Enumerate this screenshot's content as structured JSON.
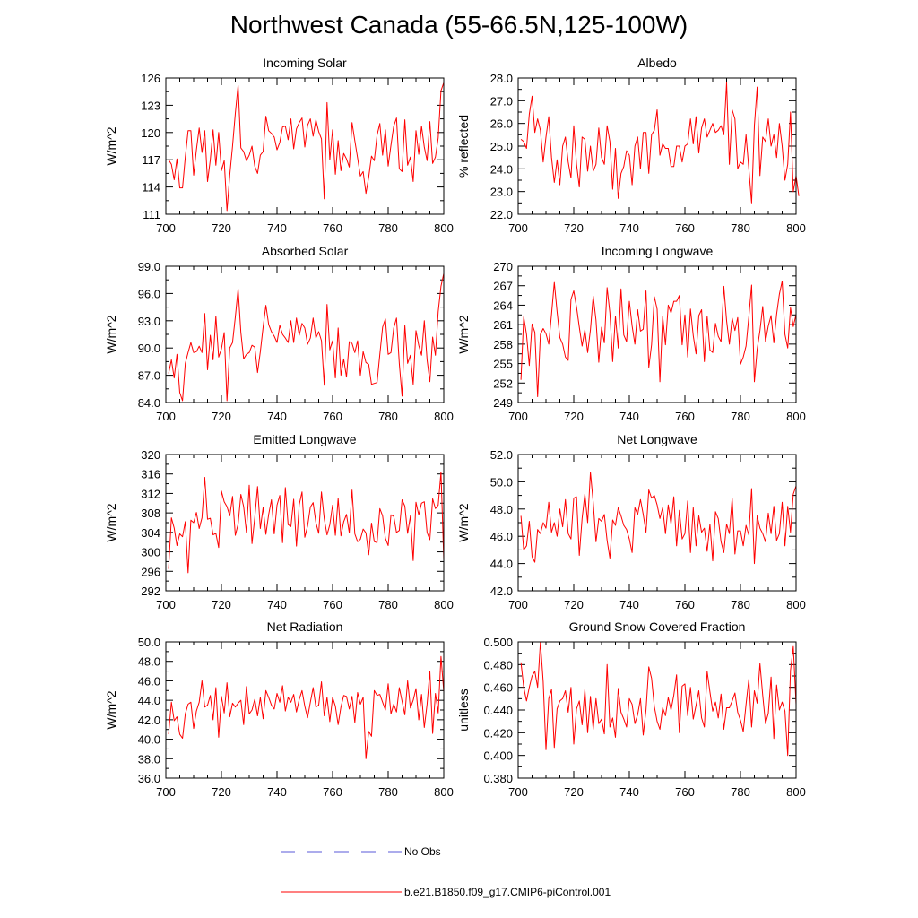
{
  "title": "Northwest Canada (55-66.5N,125-100W)",
  "colors": {
    "series": "#ff0000",
    "obs": "#5a5ad8",
    "axis": "#000000"
  },
  "legend": {
    "obs_label": "No Obs",
    "model_label": "b.e21.B1850.f09_g17.CMIP6-piControl.001"
  },
  "chart_data": [
    {
      "type": "line",
      "title": "Incoming Solar",
      "ylabel": "W/m^2",
      "xlim": [
        700,
        800
      ],
      "ylim": [
        111,
        126
      ],
      "xticks": [
        "700",
        "720",
        "740",
        "760",
        "780",
        "800"
      ],
      "yticks": [
        "111",
        "114",
        "117",
        "120",
        "123",
        "126"
      ],
      "series": [
        {
          "name": "b.e21.B1850.f09_g17.CMIP6-piControl.001",
          "x_start": 701,
          "values": [
            117.0,
            116.5,
            114.8,
            117.1,
            113.9,
            113.9,
            117.3,
            120.2,
            120.2,
            115.3,
            118.1,
            120.5,
            117.8,
            120.2,
            114.6,
            117.0,
            120.3,
            116.4,
            120.0,
            115.8,
            116.9,
            111.4,
            115.3,
            118.5,
            122.1,
            125.2,
            118.3,
            117.9,
            116.9,
            117.5,
            118.5,
            116.3,
            115.5,
            117.5,
            117.9,
            121.8,
            120.2,
            119.9,
            119.5,
            118.1,
            118.9,
            120.6,
            120.7,
            119.2,
            121.5,
            118.2,
            120.4,
            121.1,
            121.6,
            118.4,
            120.8,
            121.5,
            119.6,
            121.4,
            120.1,
            119.3,
            112.7,
            123.3,
            117.0,
            120.3,
            115.4,
            119.1,
            115.8,
            117.7,
            117.1,
            116.2,
            121.1,
            119.1,
            117.2,
            115.2,
            115.7,
            113.3,
            115.1,
            117.4,
            116.9,
            119.7,
            121.0,
            117.5,
            120.3,
            116.3,
            118.6,
            120.7,
            121.6,
            116.0,
            115.7,
            121.4,
            116.4,
            117.3,
            114.6,
            120.2,
            117.6,
            120.7,
            118.4,
            116.9,
            121.2,
            116.6,
            117.3,
            119.4,
            124.6,
            125.5
          ]
        }
      ]
    },
    {
      "type": "line",
      "title": "Albedo",
      "ylabel": "% reflected",
      "xlim": [
        700,
        800
      ],
      "ylim": [
        22.0,
        28.0
      ],
      "xticks": [
        "700",
        "720",
        "740",
        "760",
        "780",
        "800"
      ],
      "yticks": [
        "22.0",
        "23.0",
        "24.0",
        "25.0",
        "26.0",
        "27.0",
        "28.0"
      ],
      "series": [
        {
          "name": "b.e21.B1850.f09_g17.CMIP6-piControl.001",
          "x_start": 701,
          "values": [
            25.3,
            25.2,
            24.9,
            26.4,
            27.2,
            25.6,
            26.2,
            25.7,
            24.3,
            25.4,
            26.3,
            24.5,
            23.4,
            24.4,
            23.3,
            25.0,
            25.4,
            24.3,
            23.6,
            25.9,
            24.2,
            23.2,
            25.4,
            25.3,
            23.9,
            25.0,
            23.9,
            24.2,
            25.8,
            24.5,
            24.2,
            25.9,
            25.2,
            23.1,
            24.9,
            22.7,
            23.8,
            24.1,
            24.8,
            24.6,
            23.3,
            25.0,
            25.4,
            24.0,
            25.6,
            25.6,
            23.8,
            25.5,
            25.7,
            26.6,
            24.6,
            25.1,
            24.9,
            24.9,
            24.1,
            24.1,
            25.0,
            25.0,
            24.3,
            25.0,
            25.1,
            26.2,
            25.1,
            26.3,
            24.7,
            25.8,
            26.2,
            25.4,
            25.7,
            26.0,
            25.6,
            25.7,
            25.9,
            25.5,
            27.8,
            24.2,
            26.6,
            26.2,
            24.0,
            24.3,
            24.2,
            25.5,
            24.0,
            22.5,
            25.9,
            27.6,
            23.7,
            25.4,
            25.2,
            26.2,
            25.0,
            25.5,
            24.5,
            26.0,
            25.0,
            23.5,
            24.2,
            26.5,
            23.0,
            23.7,
            22.8
          ]
        }
      ]
    },
    {
      "type": "line",
      "title": "Absorbed Solar",
      "ylabel": "W/m^2",
      "xlim": [
        700,
        800
      ],
      "ylim": [
        84.0,
        99.0
      ],
      "xticks": [
        "700",
        "720",
        "740",
        "760",
        "780",
        "800"
      ],
      "yticks": [
        "84.0",
        "87.0",
        "90.0",
        "93.0",
        "96.0",
        "99.0"
      ],
      "series": [
        {
          "name": "b.e21.B1850.f09_g17.CMIP6-piControl.001",
          "x_start": 701,
          "values": [
            87.2,
            88.7,
            86.7,
            89.3,
            85.1,
            84.2,
            88.3,
            89.5,
            90.6,
            89.5,
            89.6,
            90.2,
            89.5,
            93.8,
            87.6,
            91.4,
            88.7,
            93.5,
            89.0,
            89.9,
            91.7,
            84.2,
            90.0,
            90.6,
            93.4,
            96.5,
            91.7,
            88.8,
            89.3,
            89.5,
            90.3,
            90.1,
            87.3,
            89.6,
            92.3,
            94.7,
            92.6,
            91.8,
            91.3,
            90.6,
            92.5,
            91.5,
            91.1,
            90.6,
            93.0,
            90.6,
            93.3,
            91.4,
            92.7,
            92.2,
            90.4,
            91.1,
            93.3,
            91.1,
            91.8,
            90.8,
            85.9,
            94.8,
            89.8,
            90.8,
            86.7,
            92.2,
            87.0,
            88.8,
            86.8,
            90.7,
            90.5,
            89.5,
            90.8,
            87.0,
            89.6,
            88.4,
            88.2,
            86.0,
            86.1,
            86.2,
            89.3,
            92.3,
            93.2,
            89.3,
            89.5,
            92.2,
            93.3,
            88.3,
            84.7,
            92.5,
            88.3,
            89.2,
            86.0,
            91.9,
            90.3,
            89.2,
            93.0,
            88.7,
            86.3,
            91.2,
            89.2,
            94.0,
            96.8,
            98.2
          ]
        }
      ]
    },
    {
      "type": "line",
      "title": "Incoming Longwave",
      "ylabel": "W/m^2",
      "xlim": [
        700,
        800
      ],
      "ylim": [
        249,
        270
      ],
      "xticks": [
        "700",
        "720",
        "740",
        "760",
        "780",
        "800"
      ],
      "yticks": [
        "249",
        "252",
        "255",
        "258",
        "261",
        "264",
        "267",
        "270"
      ],
      "series": [
        {
          "name": "b.e21.B1850.f09_g17.CMIP6-piControl.001",
          "x_start": 701,
          "values": [
            252.5,
            262.2,
            259.5,
            254.7,
            261.1,
            259.8,
            249.9,
            259.5,
            260.4,
            259.6,
            258.0,
            262.6,
            267.5,
            263.0,
            259.0,
            258.0,
            256.0,
            255.5,
            264.9,
            266.2,
            263.7,
            260.6,
            257.7,
            260.2,
            256.7,
            260.2,
            265.4,
            261.7,
            255.2,
            260.6,
            258.2,
            266.7,
            262.8,
            255.3,
            262.3,
            257.4,
            266.5,
            259.4,
            258.4,
            264.6,
            260.8,
            258.0,
            263.3,
            260.0,
            260.3,
            266.2,
            254.4,
            257.9,
            265.3,
            263.4,
            252.2,
            262.3,
            257.9,
            264.0,
            262.8,
            264.6,
            264.6,
            265.5,
            257.9,
            262.5,
            256.0,
            263.4,
            259.3,
            256.5,
            262.4,
            263.3,
            255.3,
            262.3,
            257.1,
            256.7,
            261.2,
            259.2,
            258.4,
            266.9,
            261.6,
            258.0,
            262.0,
            260.1,
            262.1,
            254.9,
            256.0,
            257.7,
            262.2,
            267.1,
            252.2,
            257.2,
            260.1,
            263.8,
            258.4,
            260.8,
            262.4,
            258.2,
            262.6,
            265.7,
            267.7,
            259.5,
            257.4,
            263.6,
            260.7,
            262.6
          ]
        }
      ]
    },
    {
      "type": "line",
      "title": "Emitted Longwave",
      "ylabel": "W/m^2",
      "xlim": [
        700,
        800
      ],
      "ylim": [
        292,
        320
      ],
      "xticks": [
        "700",
        "720",
        "740",
        "760",
        "780",
        "800"
      ],
      "yticks": [
        "292",
        "296",
        "300",
        "304",
        "308",
        "312",
        "316",
        "320"
      ],
      "series": [
        {
          "name": "b.e21.B1850.f09_g17.CMIP6-piControl.001",
          "x_start": 701,
          "values": [
            296.5,
            307.0,
            304.9,
            301.3,
            303.7,
            303.1,
            306.2,
            295.7,
            306.5,
            306.0,
            308.1,
            304.8,
            307.0,
            315.3,
            306.7,
            306.9,
            303.5,
            303.8,
            300.9,
            312.5,
            310.3,
            309.3,
            307.4,
            311.4,
            303.4,
            305.7,
            311.8,
            309.3,
            304.0,
            313.7,
            301.7,
            307.0,
            313.4,
            304.8,
            309.1,
            303.6,
            307.7,
            310.7,
            303.7,
            309.6,
            311.6,
            301.9,
            313.2,
            305.6,
            305.2,
            310.8,
            301.2,
            309.7,
            312.3,
            303.0,
            305.3,
            309.2,
            310.1,
            306.0,
            303.8,
            312.3,
            306.8,
            303.5,
            305.6,
            309.6,
            303.4,
            311.0,
            303.3,
            306.2,
            307.7,
            303.9,
            312.7,
            303.7,
            302.1,
            302.6,
            304.7,
            303.9,
            299.4,
            305.9,
            302.1,
            301.9,
            308.9,
            307.4,
            302.8,
            301.3,
            307.6,
            307.3,
            304.0,
            304.4,
            310.7,
            309.4,
            303.8,
            307.4,
            298.2,
            310.2,
            307.6,
            310.0,
            310.3,
            304.0,
            302.5,
            310.9,
            308.9,
            309.6,
            316.4,
            298.4
          ]
        }
      ]
    },
    {
      "type": "line",
      "title": "Net Longwave",
      "ylabel": "W/m^2",
      "xlim": [
        700,
        800
      ],
      "ylim": [
        42.0,
        52.0
      ],
      "xticks": [
        "700",
        "720",
        "740",
        "760",
        "780",
        "800"
      ],
      "yticks": [
        "42.0",
        "44.0",
        "46.0",
        "48.0",
        "50.0",
        "52.0"
      ],
      "series": [
        {
          "name": "b.e21.B1850.f09_g17.CMIP6-piControl.001",
          "x_start": 701,
          "values": [
            47.5,
            45.0,
            45.3,
            47.1,
            44.5,
            44.1,
            46.5,
            46.2,
            47.0,
            46.6,
            48.5,
            46.3,
            47.0,
            46.0,
            48.0,
            46.7,
            48.7,
            46.2,
            45.8,
            48.8,
            48.9,
            44.6,
            47.3,
            49.1,
            47.0,
            50.7,
            48.5,
            45.6,
            47.3,
            47.1,
            47.6,
            45.7,
            44.4,
            47.2,
            46.8,
            48.1,
            47.5,
            46.8,
            46.5,
            45.8,
            44.8,
            48.1,
            47.6,
            48.7,
            47.6,
            46.3,
            49.4,
            48.8,
            49.0,
            48.3,
            47.3,
            48.1,
            46.2,
            48.3,
            46.9,
            48.9,
            45.3,
            47.9,
            45.8,
            46.2,
            48.6,
            44.8,
            48.1,
            45.3,
            47.5,
            46.3,
            46.6,
            44.9,
            46.9,
            44.2,
            47.8,
            47.3,
            45.6,
            44.8,
            46.9,
            46.2,
            48.8,
            44.7,
            46.4,
            46.4,
            45.3,
            46.8,
            46.1,
            49.5,
            44.0,
            47.5,
            46.6,
            46.2,
            45.6,
            47.7,
            46.2,
            48.2,
            45.7,
            46.2,
            48.5,
            45.3,
            48.2,
            46.3,
            49.1,
            49.7
          ]
        }
      ]
    },
    {
      "type": "line",
      "title": "Net Radiation",
      "ylabel": "W/m^2",
      "xlim": [
        700,
        800
      ],
      "ylim": [
        36.0,
        50.0
      ],
      "xticks": [
        "700",
        "720",
        "740",
        "760",
        "780",
        "800"
      ],
      "yticks": [
        "36.0",
        "38.0",
        "40.0",
        "42.0",
        "44.0",
        "46.0",
        "48.0",
        "50.0"
      ],
      "series": [
        {
          "name": "b.e21.B1850.f09_g17.CMIP6-piControl.001",
          "x_start": 701,
          "values": [
            40.5,
            43.8,
            41.9,
            42.3,
            40.5,
            40.1,
            42.6,
            43.6,
            43.8,
            41.1,
            42.9,
            43.8,
            46.0,
            43.3,
            43.5,
            44.5,
            42.0,
            45.3,
            40.2,
            44.4,
            42.7,
            45.8,
            42.3,
            43.7,
            43.3,
            43.7,
            44.0,
            41.5,
            45.4,
            42.6,
            43.0,
            44.1,
            42.4,
            44.3,
            42.1,
            45.0,
            44.3,
            43.5,
            43.1,
            44.7,
            43.8,
            45.5,
            42.9,
            44.3,
            43.8,
            44.6,
            42.8,
            44.1,
            45.0,
            43.4,
            42.2,
            43.8,
            45.3,
            43.3,
            43.5,
            45.9,
            42.4,
            44.3,
            41.8,
            44.3,
            43.4,
            41.5,
            43.3,
            44.5,
            44.4,
            43.1,
            44.4,
            41.7,
            44.8,
            43.6,
            44.3,
            38.0,
            40.8,
            40.3,
            45.0,
            44.5,
            44.6,
            43.8,
            43.0,
            45.7,
            42.6,
            43.6,
            42.8,
            45.3,
            43.9,
            42.5,
            46.0,
            43.2,
            44.0,
            45.2,
            42.0,
            44.6,
            41.2,
            43.6,
            47.0,
            40.6,
            44.7,
            42.7,
            48.5,
            44.9
          ]
        }
      ]
    },
    {
      "type": "line",
      "title": "Ground Snow Covered Fraction",
      "ylabel": "unitless",
      "xlim": [
        700,
        800
      ],
      "ylim": [
        0.38,
        0.5
      ],
      "xticks": [
        "700",
        "720",
        "740",
        "760",
        "780",
        "800"
      ],
      "yticks": [
        "0.380",
        "0.400",
        "0.420",
        "0.440",
        "0.460",
        "0.480",
        "0.500"
      ],
      "series": [
        {
          "name": "b.e21.B1850.f09_g17.CMIP6-piControl.001",
          "x_start": 701,
          "values": [
            0.482,
            0.46,
            0.448,
            0.46,
            0.47,
            0.474,
            0.46,
            0.5,
            0.465,
            0.405,
            0.45,
            0.458,
            0.407,
            0.441,
            0.448,
            0.45,
            0.457,
            0.438,
            0.46,
            0.41,
            0.441,
            0.448,
            0.427,
            0.458,
            0.42,
            0.452,
            0.423,
            0.45,
            0.428,
            0.432,
            0.419,
            0.48,
            0.425,
            0.433,
            0.416,
            0.459,
            0.438,
            0.432,
            0.425,
            0.45,
            0.445,
            0.428,
            0.436,
            0.45,
            0.418,
            0.44,
            0.478,
            0.468,
            0.443,
            0.43,
            0.423,
            0.442,
            0.435,
            0.451,
            0.44,
            0.453,
            0.471,
            0.42,
            0.461,
            0.463,
            0.435,
            0.46,
            0.432,
            0.444,
            0.457,
            0.433,
            0.425,
            0.474,
            0.456,
            0.439,
            0.447,
            0.433,
            0.454,
            0.423,
            0.442,
            0.442,
            0.448,
            0.455,
            0.438,
            0.431,
            0.421,
            0.445,
            0.467,
            0.425,
            0.457,
            0.446,
            0.481,
            0.453,
            0.428,
            0.437,
            0.469,
            0.415,
            0.462,
            0.44,
            0.447,
            0.439,
            0.4,
            0.475,
            0.496,
            0.445
          ]
        }
      ]
    }
  ]
}
